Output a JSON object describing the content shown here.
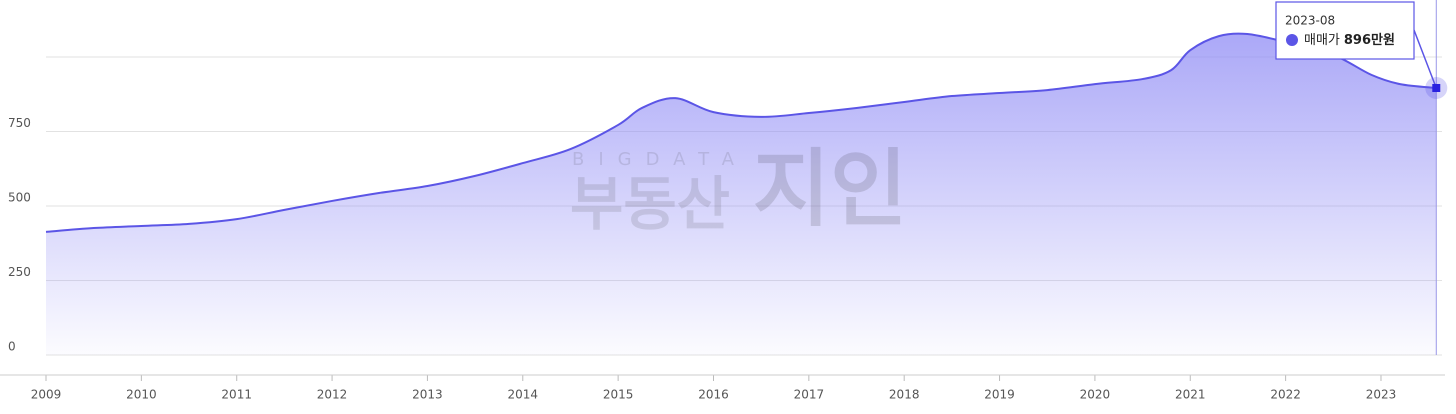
{
  "chart_data": {
    "type": "area",
    "series": [
      {
        "name": "매매가",
        "color": "#5b55e6",
        "x": [
          2009.0,
          2009.5,
          2010.0,
          2010.5,
          2011.0,
          2011.5,
          2012.0,
          2012.5,
          2013.0,
          2013.5,
          2014.0,
          2014.5,
          2015.0,
          2015.25,
          2015.6,
          2016.0,
          2016.5,
          2017.0,
          2017.5,
          2018.0,
          2018.5,
          2019.0,
          2019.5,
          2020.0,
          2020.5,
          2020.8,
          2021.0,
          2021.3,
          2021.6,
          2022.0,
          2022.5,
          2022.9,
          2023.2,
          2023.58
        ],
        "values": [
          413,
          426,
          433,
          440,
          456,
          487,
          517,
          544,
          567,
          601,
          644,
          691,
          772,
          829,
          862,
          815,
          799,
          812,
          829,
          849,
          869,
          879,
          889,
          909,
          926,
          956,
          1023,
          1070,
          1077,
          1050,
          1007,
          940,
          909,
          896
        ]
      }
    ],
    "xlim": [
      2009,
      2023.64
    ],
    "xticks": [
      2009,
      2010,
      2011,
      2012,
      2013,
      2014,
      2015,
      2016,
      2017,
      2018,
      2019,
      2020,
      2021,
      2022,
      2023
    ],
    "ylim": [
      0,
      1000
    ],
    "yticks": [
      0,
      250,
      500,
      750
    ],
    "grid": true,
    "tooltip": {
      "date": "2023-08",
      "value": 896,
      "label": "896만원"
    },
    "watermark": {
      "top": "BIGDATA",
      "brand": "부동산",
      "logo": "지인"
    }
  }
}
